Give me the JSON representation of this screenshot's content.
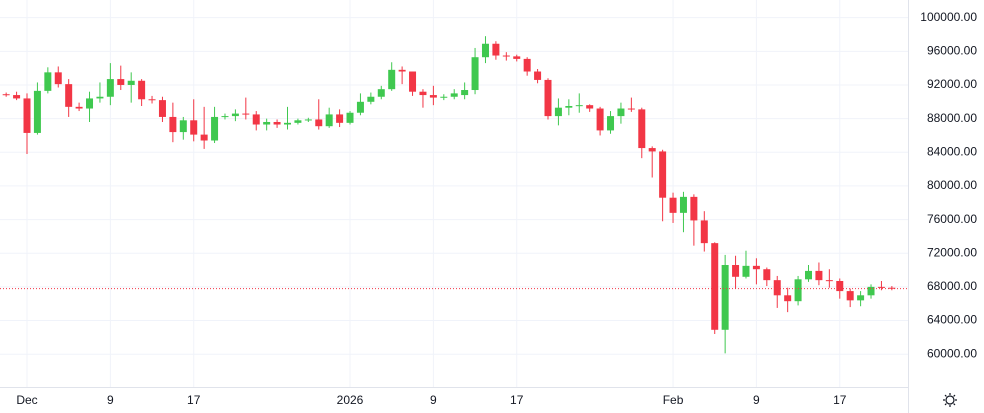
{
  "chart_data": {
    "type": "candlestick",
    "categories": [
      null,
      null,
      "Dec",
      null,
      null,
      null,
      null,
      null,
      null,
      null,
      "9",
      null,
      null,
      null,
      null,
      null,
      null,
      null,
      "17",
      null,
      null,
      null,
      null,
      null,
      null,
      null,
      null,
      null,
      null,
      null,
      null,
      null,
      null,
      "2026",
      null,
      null,
      null,
      null,
      null,
      null,
      null,
      "9",
      null,
      null,
      null,
      null,
      null,
      null,
      null,
      "17",
      null,
      null,
      null,
      null,
      null,
      null,
      null,
      null,
      null,
      null,
      null,
      null,
      null,
      null,
      "Feb",
      null,
      null,
      null,
      null,
      null,
      null,
      null,
      "9",
      null,
      null,
      null,
      null,
      null,
      null,
      null,
      "17",
      null,
      null,
      null,
      null,
      null
    ],
    "open": [
      90900,
      90800,
      90400,
      86300,
      91300,
      93500,
      92100,
      89400,
      89200,
      90400,
      90600,
      92700,
      92000,
      92500,
      90300,
      90200,
      88200,
      86400,
      87800,
      86100,
      85400,
      88200,
      88300,
      88600,
      88500,
      87300,
      87600,
      87300,
      87500,
      87800,
      87900,
      87100,
      88500,
      87500,
      88700,
      90000,
      90600,
      91500,
      93800,
      93600,
      91200,
      90800,
      90500,
      90600,
      90800,
      91400,
      95300,
      96900,
      95500,
      95400,
      95100,
      93600,
      92600,
      88300,
      89300,
      89500,
      89600,
      89200,
      86600,
      88300,
      89200,
      89100,
      84500,
      84100,
      78600,
      76800,
      78700,
      75900,
      73200,
      62900,
      70600,
      69200,
      70500,
      70100,
      68800,
      67000,
      66300,
      68900,
      69900,
      68800,
      68700,
      67500,
      66400,
      67000,
      68000,
      67900
    ],
    "high": [
      91100,
      91200,
      91000,
      92300,
      94100,
      94200,
      92700,
      89900,
      91200,
      92300,
      94600,
      94300,
      93500,
      92700,
      90700,
      90600,
      89900,
      88200,
      90300,
      89400,
      89400,
      88600,
      89100,
      90500,
      88900,
      88000,
      87900,
      89400,
      88000,
      88100,
      90300,
      89300,
      89100,
      88900,
      91000,
      91100,
      91900,
      94700,
      94200,
      93600,
      91500,
      91900,
      90900,
      91500,
      92300,
      96400,
      97800,
      97200,
      95900,
      95600,
      95300,
      93900,
      92800,
      90400,
      90300,
      91000,
      89700,
      89400,
      88900,
      89900,
      90500,
      89300,
      84700,
      84300,
      79200,
      79300,
      79000,
      77000,
      73300,
      71800,
      71700,
      72300,
      71400,
      70300,
      69300,
      67900,
      69300,
      70600,
      70900,
      70100,
      69000,
      67800,
      67500,
      68300,
      68700,
      68100
    ],
    "low": [
      90600,
      90200,
      83800,
      86100,
      91000,
      91700,
      88200,
      88900,
      87600,
      89900,
      89600,
      91400,
      89900,
      89500,
      89800,
      87600,
      85200,
      85500,
      85300,
      84400,
      85100,
      87900,
      87700,
      87900,
      86600,
      86600,
      86900,
      86700,
      87300,
      87600,
      86700,
      86900,
      87000,
      87300,
      88400,
      89700,
      90300,
      91300,
      92100,
      90700,
      89300,
      89600,
      90200,
      90300,
      90300,
      90900,
      94600,
      95000,
      94900,
      94800,
      93100,
      92200,
      87900,
      87200,
      88400,
      88700,
      88800,
      86000,
      86200,
      87400,
      88800,
      83300,
      81000,
      75800,
      75600,
      74500,
      72900,
      72200,
      62400,
      60100,
      67800,
      69000,
      68300,
      68100,
      65500,
      65000,
      65800,
      68600,
      68200,
      67900,
      66600,
      65600,
      65700,
      66600,
      67600,
      67600
    ],
    "close": [
      90800,
      90400,
      86300,
      91300,
      93500,
      92100,
      89400,
      89200,
      90400,
      90600,
      92700,
      92000,
      92500,
      90300,
      90200,
      88200,
      86400,
      87800,
      86100,
      85400,
      88200,
      88300,
      88600,
      88500,
      87300,
      87600,
      87300,
      87500,
      87800,
      87900,
      87100,
      88500,
      87500,
      88700,
      90000,
      90600,
      91500,
      93800,
      93600,
      91200,
      90800,
      90500,
      90600,
      91000,
      91400,
      95300,
      96900,
      95500,
      95400,
      95100,
      93600,
      92600,
      88300,
      89300,
      89500,
      89600,
      89200,
      86600,
      88300,
      89200,
      89100,
      84500,
      84100,
      78600,
      76800,
      78700,
      75900,
      73200,
      62900,
      70600,
      69200,
      70500,
      70100,
      68800,
      67000,
      66300,
      68900,
      69900,
      68800,
      68700,
      67500,
      66400,
      67000,
      68000,
      67900,
      67800
    ],
    "up_color": "#3fc84f",
    "down_color": "#f23645",
    "ylim": [
      56100,
      102100
    ],
    "yticks": [
      {
        "value": 60000,
        "label": "60000.00"
      },
      {
        "value": 64000,
        "label": "64000.00"
      },
      {
        "value": 68000,
        "label": "68000.00"
      },
      {
        "value": 72000,
        "label": "72000.00"
      },
      {
        "value": 76000,
        "label": "76000.00"
      },
      {
        "value": 80000,
        "label": "80000.00"
      },
      {
        "value": 84000,
        "label": "84000.00"
      },
      {
        "value": 88000,
        "label": "88000.00"
      },
      {
        "value": 92000,
        "label": "92000.00"
      },
      {
        "value": 96000,
        "label": "96000.00"
      },
      {
        "value": 100000,
        "label": "100000.00"
      }
    ],
    "grid": true
  }
}
